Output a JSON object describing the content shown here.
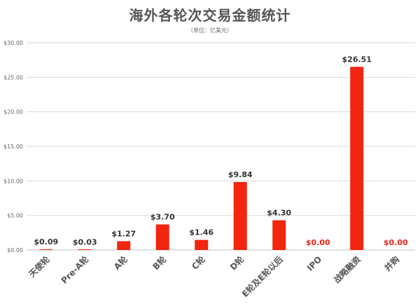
{
  "chart_data": {
    "type": "bar",
    "title": "海外各轮次交易金额统计",
    "subtitle": "（单位：亿美元）",
    "xlabel": "",
    "ylabel": "",
    "ylim": [
      0,
      30
    ],
    "yticks": [
      0,
      5,
      10,
      15,
      20,
      25,
      30
    ],
    "ytick_labels": [
      "$0.00",
      "$5.00",
      "$10.00",
      "$15.00",
      "$20.00",
      "$25.00",
      "$30.00"
    ],
    "grid": true,
    "legend": "none",
    "categories": [
      "天使轮",
      "Pre-A轮",
      "A轮",
      "B轮",
      "C轮",
      "D轮",
      "E轮及E轮以后",
      "IPO",
      "战略融资",
      "并购"
    ],
    "values": [
      0.09,
      0.03,
      1.27,
      3.7,
      1.46,
      9.84,
      4.3,
      0.0,
      26.51,
      0.0
    ],
    "data_labels": [
      "$0.09",
      "$0.03",
      "$1.27",
      "$3.70",
      "$1.46",
      "$9.84",
      "$4.30",
      "$0.00",
      "$26.51",
      "$0.00"
    ],
    "label_colors": [
      "#333333",
      "#333333",
      "#333333",
      "#333333",
      "#333333",
      "#333333",
      "#333333",
      "#e8251a",
      "#333333",
      "#e8251a"
    ],
    "bar_color": "#f2250f",
    "grid_color": "#d9d9d9",
    "axis_color": "#bfbfbf"
  }
}
